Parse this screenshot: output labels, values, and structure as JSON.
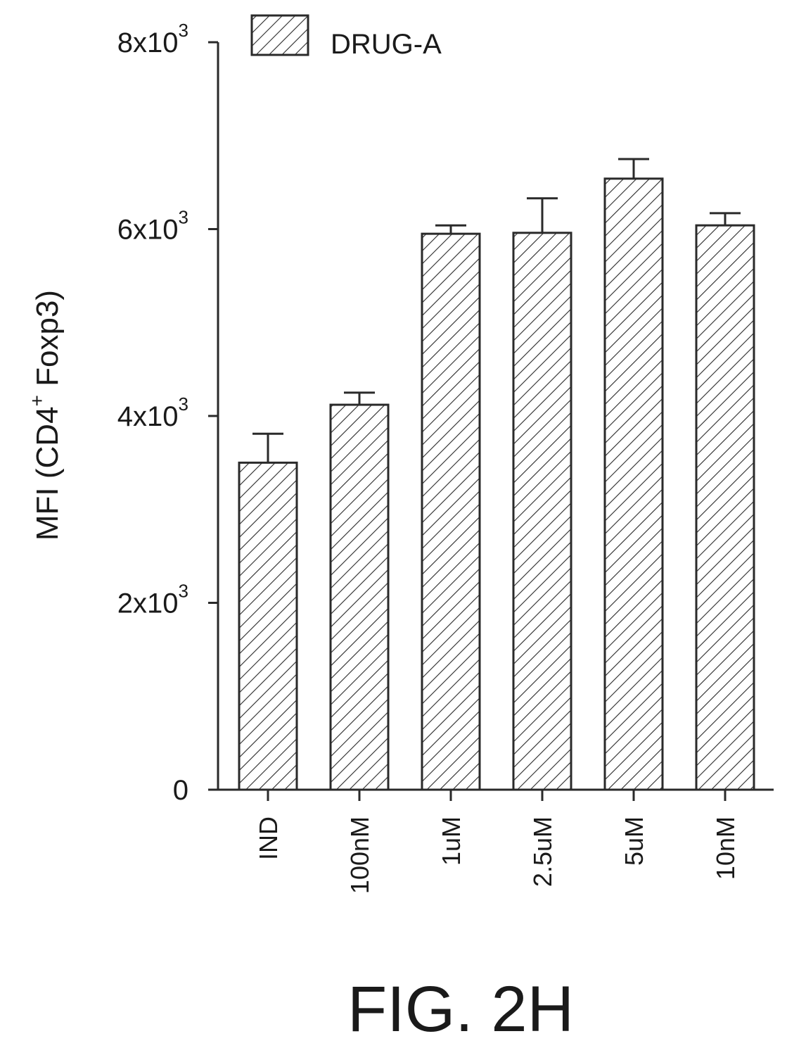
{
  "figure_label": "FIG. 2H",
  "chart_data": {
    "type": "bar",
    "title": "",
    "xlabel": "",
    "ylabel": "MFI (CD4+ Foxp3)",
    "ylabel_parts": {
      "main": "MFI (CD4",
      "sup": "+",
      "rest": " Foxp3)"
    },
    "ylim": [
      0,
      8000
    ],
    "yticks": [
      {
        "value": 0,
        "base": "0",
        "exp": ""
      },
      {
        "value": 2000,
        "base": "2x10",
        "exp": "3"
      },
      {
        "value": 4000,
        "base": "4x10",
        "exp": "3"
      },
      {
        "value": 6000,
        "base": "6x10",
        "exp": "3"
      },
      {
        "value": 8000,
        "base": "8x10",
        "exp": "3"
      }
    ],
    "categories": [
      "IND",
      "100nM",
      "1uM",
      "2.5uM",
      "5uM",
      "10nM"
    ],
    "series": [
      {
        "name": "DRUG-A",
        "values": [
          3500,
          4120,
          5950,
          5960,
          6540,
          6040
        ],
        "errors": [
          310,
          130,
          90,
          370,
          210,
          130
        ]
      }
    ],
    "legend": {
      "position": "top",
      "pattern": "diagonal-hatch"
    },
    "grid": false
  }
}
